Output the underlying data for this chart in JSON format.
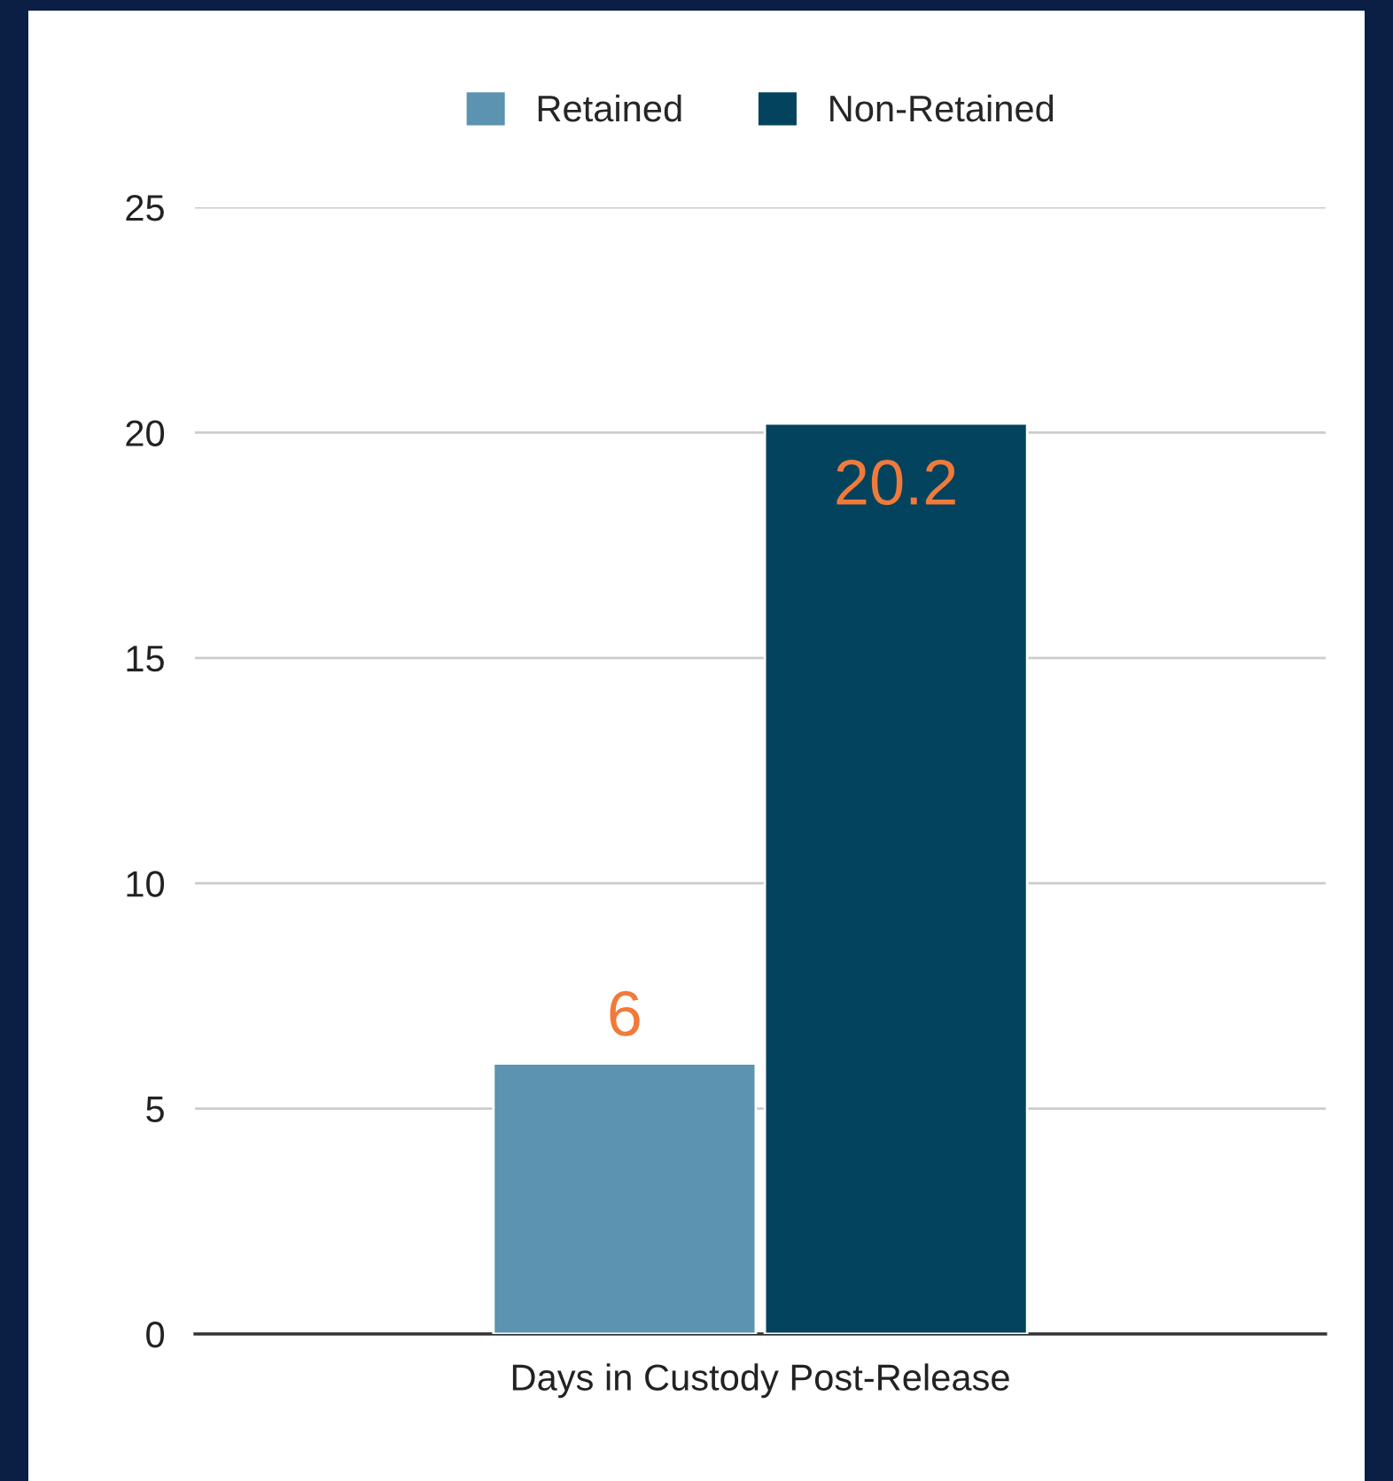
{
  "chart_data": {
    "type": "bar",
    "categories": [
      "Days in Custody Post-Release"
    ],
    "series": [
      {
        "name": "Retained",
        "color": "#5b93b0",
        "values": [
          6
        ]
      },
      {
        "name": "Non-Retained",
        "color": "#03435e",
        "values": [
          20.2
        ]
      }
    ],
    "ylim": [
      0,
      25
    ],
    "yticks": [
      0,
      5,
      10,
      15,
      20,
      25
    ],
    "grid": "y",
    "legend": "top",
    "data_labels": true
  }
}
